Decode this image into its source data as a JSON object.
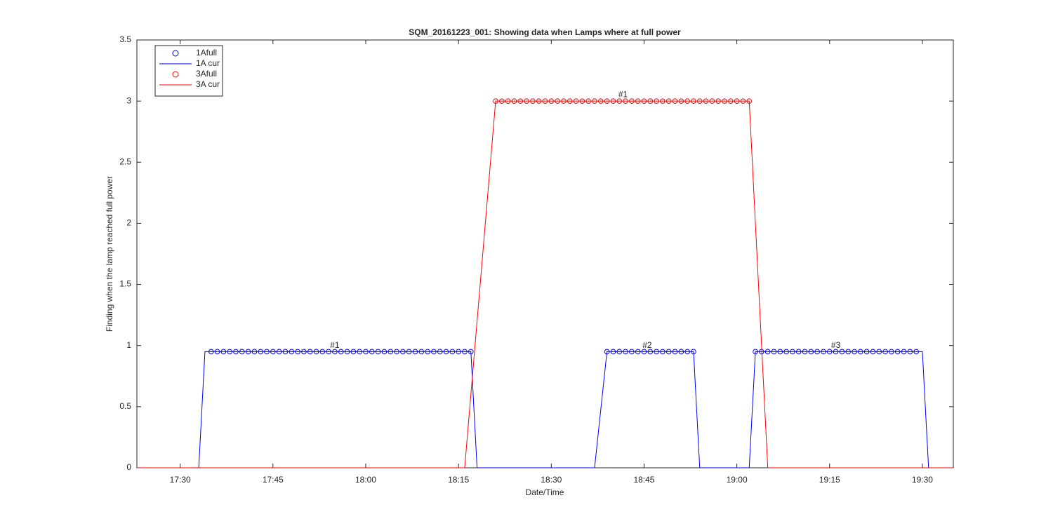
{
  "chart_data": {
    "type": "line",
    "title": "SQM_20161223_001: Showing data when Lamps where at full power",
    "x_label": "Date/Time",
    "y_label": "Finding when the lamp reached full power",
    "xlim": [
      "17:23",
      "19:35"
    ],
    "xticks": [
      "17:30",
      "17:45",
      "18:00",
      "18:15",
      "18:30",
      "18:45",
      "19:00",
      "19:15",
      "19:30"
    ],
    "ylim": [
      0,
      3.5
    ],
    "yticks": [
      0,
      0.5,
      1,
      1.5,
      2,
      2.5,
      3,
      3.5
    ],
    "legend": "upper left",
    "series": [
      {
        "name": "1Afull",
        "color": "#0000ff",
        "mode": "markers",
        "x": [
          "17:35",
          "17:36",
          "17:37",
          "17:38",
          "17:39",
          "17:40",
          "17:41",
          "17:42",
          "17:43",
          "17:44",
          "17:45",
          "17:46",
          "17:47",
          "17:48",
          "17:49",
          "17:50",
          "17:51",
          "17:52",
          "17:53",
          "17:54",
          "17:55",
          "17:56",
          "17:57",
          "17:58",
          "17:59",
          "18:00",
          "18:01",
          "18:02",
          "18:03",
          "18:04",
          "18:05",
          "18:06",
          "18:07",
          "18:08",
          "18:09",
          "18:10",
          "18:11",
          "18:12",
          "18:13",
          "18:14",
          "18:15",
          "18:16",
          "18:17",
          "18:39",
          "18:40",
          "18:41",
          "18:42",
          "18:43",
          "18:44",
          "18:45",
          "18:46",
          "18:47",
          "18:48",
          "18:49",
          "18:50",
          "18:51",
          "18:52",
          "18:53",
          "19:03",
          "19:04",
          "19:05",
          "19:06",
          "19:07",
          "19:08",
          "19:09",
          "19:10",
          "19:11",
          "19:12",
          "19:13",
          "19:14",
          "19:15",
          "19:16",
          "19:17",
          "19:18",
          "19:19",
          "19:20",
          "19:21",
          "19:22",
          "19:23",
          "19:24",
          "19:25",
          "19:26",
          "19:27",
          "19:28",
          "19:29"
        ],
        "values": [
          0.95,
          0.95,
          0.95,
          0.95,
          0.95,
          0.95,
          0.95,
          0.95,
          0.95,
          0.95,
          0.95,
          0.95,
          0.95,
          0.95,
          0.95,
          0.95,
          0.95,
          0.95,
          0.95,
          0.95,
          0.95,
          0.95,
          0.95,
          0.95,
          0.95,
          0.95,
          0.95,
          0.95,
          0.95,
          0.95,
          0.95,
          0.95,
          0.95,
          0.95,
          0.95,
          0.95,
          0.95,
          0.95,
          0.95,
          0.95,
          0.95,
          0.95,
          0.95,
          0.95,
          0.95,
          0.95,
          0.95,
          0.95,
          0.95,
          0.95,
          0.95,
          0.95,
          0.95,
          0.95,
          0.95,
          0.95,
          0.95,
          0.95,
          0.95,
          0.95,
          0.95,
          0.95,
          0.95,
          0.95,
          0.95,
          0.95,
          0.95,
          0.95,
          0.95,
          0.95,
          0.95,
          0.95,
          0.95,
          0.95,
          0.95,
          0.95,
          0.95,
          0.95,
          0.95,
          0.95,
          0.95,
          0.95,
          0.95,
          0.95,
          0.95
        ]
      },
      {
        "name": "1A cur",
        "color": "#0000ff",
        "mode": "lines",
        "x": [
          "17:23",
          "17:33",
          "17:34",
          "18:17",
          "18:18",
          "18:37",
          "18:39",
          "18:53",
          "18:54",
          "19:02",
          "19:03",
          "19:30",
          "19:31",
          "19:35"
        ],
        "values": [
          0,
          0,
          0.95,
          0.95,
          0,
          0,
          0.95,
          0.95,
          0,
          0,
          0.95,
          0.95,
          0,
          0
        ]
      },
      {
        "name": "3Afull",
        "color": "#ff0000",
        "mode": "markers",
        "x": [
          "18:21",
          "18:22",
          "18:23",
          "18:24",
          "18:25",
          "18:26",
          "18:27",
          "18:28",
          "18:29",
          "18:30",
          "18:31",
          "18:32",
          "18:33",
          "18:34",
          "18:35",
          "18:36",
          "18:37",
          "18:38",
          "18:39",
          "18:40",
          "18:41",
          "18:42",
          "18:43",
          "18:44",
          "18:45",
          "18:46",
          "18:47",
          "18:48",
          "18:49",
          "18:50",
          "18:51",
          "18:52",
          "18:53",
          "18:54",
          "18:55",
          "18:56",
          "18:57",
          "18:58",
          "18:59",
          "19:00",
          "19:01",
          "19:02"
        ],
        "values": [
          3,
          3,
          3,
          3,
          3,
          3,
          3,
          3,
          3,
          3,
          3,
          3,
          3,
          3,
          3,
          3,
          3,
          3,
          3,
          3,
          3,
          3,
          3,
          3,
          3,
          3,
          3,
          3,
          3,
          3,
          3,
          3,
          3,
          3,
          3,
          3,
          3,
          3,
          3,
          3,
          3,
          3
        ]
      },
      {
        "name": "3A cur",
        "color": "#ff0000",
        "mode": "lines",
        "x": [
          "17:23",
          "18:16",
          "18:21",
          "19:02",
          "19:05",
          "19:35"
        ],
        "values": [
          0,
          0,
          3,
          3,
          0,
          0
        ]
      }
    ],
    "annotations": [
      {
        "text": "#1",
        "x": "17:55",
        "y": 1
      },
      {
        "text": "#1",
        "x": "18:41:36",
        "y": 3.05
      },
      {
        "text": "#2",
        "x": "18:45:30",
        "y": 1
      },
      {
        "text": "#3",
        "x": "19:16",
        "y": 1
      }
    ]
  }
}
